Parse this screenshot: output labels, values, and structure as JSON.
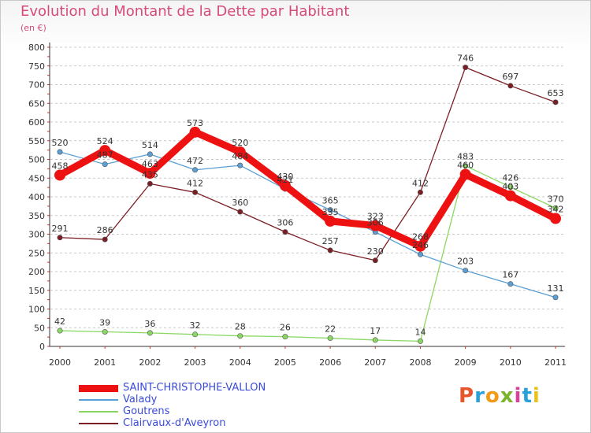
{
  "header": {
    "title": "Evolution du Montant de la Dette par Habitant",
    "subtitle": "(en €)"
  },
  "brand": {
    "logo_text": "Proxiti",
    "logo_colors": [
      "#e8542b",
      "#2aa0d8",
      "#f29a16",
      "#7ab42d",
      "#d9409a",
      "#2aa0d8",
      "#e8c21a"
    ]
  },
  "chart_data": {
    "type": "line",
    "title": "Evolution du Montant de la Dette par Habitant",
    "subtitle": "(en €)",
    "categories": [
      "2000",
      "2001",
      "2002",
      "2003",
      "2004",
      "2005",
      "2006",
      "2007",
      "2008",
      "2009",
      "2010",
      "2011"
    ],
    "yticks": [
      "0",
      "50",
      "100",
      "150",
      "200",
      "250",
      "300",
      "350",
      "400",
      "450",
      "500",
      "550",
      "600",
      "650",
      "700",
      "750",
      "800"
    ],
    "ylim": [
      0,
      800
    ],
    "grid": "horizontal-dashed",
    "legend_position": "bottom-left",
    "series": [
      {
        "name": "Clairvaux-d'Aveyron",
        "color": "#7a1e24",
        "values": [
          291,
          286,
          435,
          412,
          360,
          306,
          257,
          230,
          412,
          746,
          697,
          653
        ],
        "labels": [
          "291",
          "286",
          "435",
          "412",
          "360",
          "306",
          "257",
          "230",
          "412",
          "746",
          "697",
          "653"
        ]
      },
      {
        "name": "Goutrens",
        "color": "#8ad863",
        "values": [
          42,
          39,
          36,
          32,
          28,
          26,
          22,
          17,
          14,
          483,
          426,
          370
        ],
        "labels": [
          "42",
          "39",
          "36",
          "32",
          "28",
          "26",
          "22",
          "17",
          "14",
          "483",
          "426",
          "370"
        ]
      },
      {
        "name": "Valady",
        "color": "#5b9fd4",
        "values": [
          520,
          487,
          514,
          472,
          484,
          421,
          365,
          306,
          246,
          203,
          167,
          131
        ],
        "labels": [
          "520",
          "487",
          "514",
          "472",
          "484",
          "421",
          "365",
          "306",
          "246",
          "203",
          "167",
          "131"
        ]
      },
      {
        "name": "SAINT-CHRISTOPHE-VALLON",
        "color": "#ee1111",
        "values": [
          458,
          524,
          463,
          573,
          520,
          430,
          335,
          323,
          268,
          460,
          403,
          342
        ],
        "labels": [
          "458",
          "524",
          "463",
          "573",
          "520",
          "430",
          "335",
          "323",
          "268",
          "460",
          "403",
          "342"
        ]
      }
    ]
  }
}
